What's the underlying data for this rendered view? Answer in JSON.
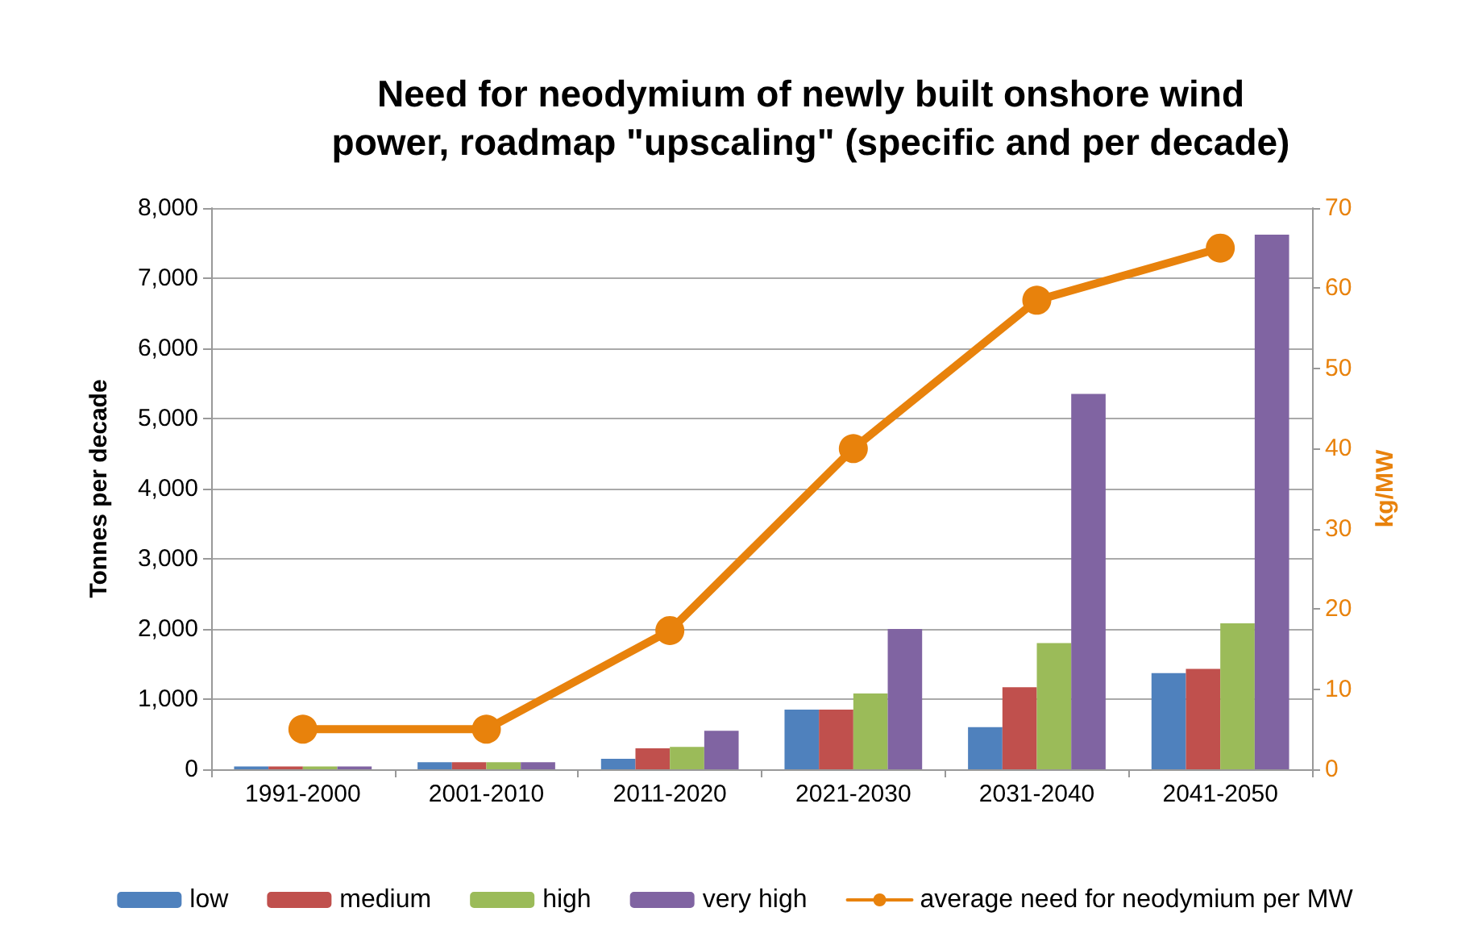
{
  "chart_data": {
    "type": "bar",
    "title": "Need for neodymium of newly built onshore wind\npower, roadmap \"upscaling\" (specific and per decade)",
    "ylabel": "Tonnes per decade",
    "y2label": "kg/MW",
    "categories": [
      "1991-2000",
      "2001-2010",
      "2011-2020",
      "2021-2030",
      "2031-2040",
      "2041-2050"
    ],
    "series": [
      {
        "name": "low",
        "color": "#4f81bd",
        "values": [
          40,
          100,
          150,
          850,
          600,
          1370
        ]
      },
      {
        "name": "medium",
        "color": "#c0504d",
        "values": [
          40,
          100,
          300,
          850,
          1170,
          1430
        ]
      },
      {
        "name": "high",
        "color": "#9bbb59",
        "values": [
          40,
          100,
          320,
          1080,
          1800,
          2080
        ]
      },
      {
        "name": "very high",
        "color": "#8064a2",
        "values": [
          40,
          100,
          550,
          2000,
          5350,
          7620
        ]
      },
      {
        "name": "average need for neodymium per MW",
        "type": "line",
        "axis": "y2",
        "color": "#e8820c",
        "marker": "circle",
        "values": [
          5,
          5,
          17.3,
          40,
          58.5,
          65
        ]
      }
    ],
    "ylim": [
      0,
      8000
    ],
    "yticks": [
      {
        "value": 0,
        "label": "0"
      },
      {
        "value": 1000,
        "label": "1,000"
      },
      {
        "value": 2000,
        "label": "2,000"
      },
      {
        "value": 3000,
        "label": "3,000"
      },
      {
        "value": 4000,
        "label": "4,000"
      },
      {
        "value": 5000,
        "label": "5,000"
      },
      {
        "value": 6000,
        "label": "6,000"
      },
      {
        "value": 7000,
        "label": "7,000"
      },
      {
        "value": 8000,
        "label": "8,000"
      }
    ],
    "y2lim": [
      0,
      70
    ],
    "y2ticks": [
      0,
      10,
      20,
      30,
      40,
      50,
      60,
      70
    ],
    "grid": "y",
    "legend": "bottom"
  }
}
